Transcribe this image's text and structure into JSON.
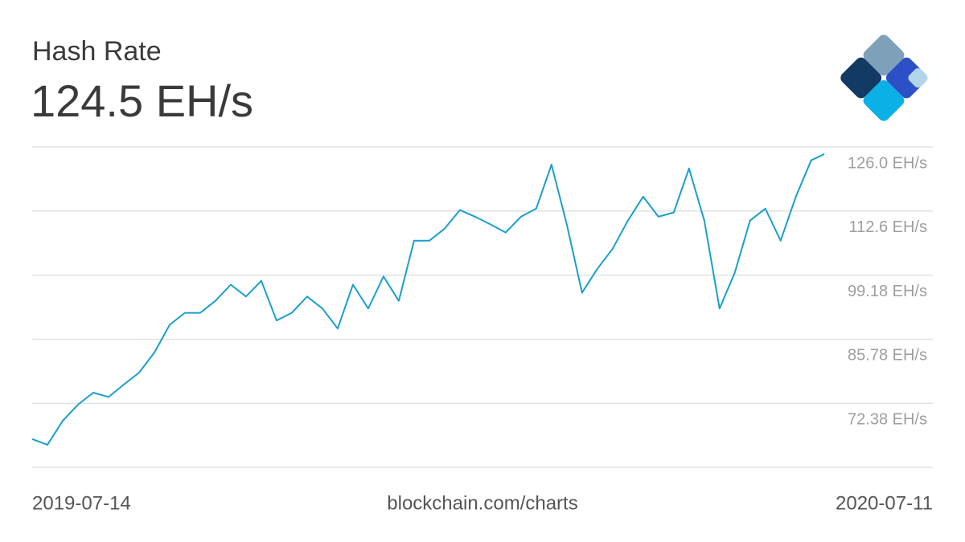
{
  "chart_data": {
    "type": "line",
    "title": "Hash Rate",
    "current_value": "124.5 EH/s",
    "source": "blockchain.com/charts",
    "color": "#1a9fcb",
    "grid": true,
    "x": [
      "2019-07-14",
      "2019-07-21",
      "2019-07-28",
      "2019-08-04",
      "2019-08-11",
      "2019-08-18",
      "2019-08-25",
      "2019-09-01",
      "2019-09-08",
      "2019-09-15",
      "2019-09-22",
      "2019-09-29",
      "2019-10-06",
      "2019-10-13",
      "2019-10-20",
      "2019-10-27",
      "2019-11-03",
      "2019-11-10",
      "2019-11-17",
      "2019-11-24",
      "2019-12-01",
      "2019-12-08",
      "2019-12-15",
      "2019-12-22",
      "2019-12-29",
      "2020-01-05",
      "2020-01-12",
      "2020-01-19",
      "2020-01-26",
      "2020-02-02",
      "2020-02-09",
      "2020-02-16",
      "2020-02-23",
      "2020-03-01",
      "2020-03-08",
      "2020-03-15",
      "2020-03-22",
      "2020-03-29",
      "2020-04-05",
      "2020-04-12",
      "2020-04-19",
      "2020-04-26",
      "2020-05-03",
      "2020-05-10",
      "2020-05-17",
      "2020-05-24",
      "2020-05-31",
      "2020-06-07",
      "2020-06-14",
      "2020-06-21",
      "2020-06-28",
      "2020-07-05",
      "2020-07-11"
    ],
    "values": [
      64.9,
      63.7,
      68.7,
      72.1,
      74.6,
      73.7,
      76.3,
      78.8,
      83.0,
      88.8,
      91.3,
      91.3,
      93.8,
      97.2,
      94.7,
      98.0,
      89.7,
      91.3,
      94.7,
      92.2,
      88.0,
      97.2,
      92.2,
      98.9,
      93.8,
      106.4,
      106.4,
      108.9,
      112.8,
      111.4,
      109.8,
      108.1,
      111.4,
      113.1,
      122.3,
      109.8,
      95.5,
      100.5,
      104.7,
      110.6,
      115.6,
      111.4,
      112.3,
      121.5,
      110.6,
      92.2,
      99.7,
      110.6,
      113.1,
      106.4,
      115.6,
      123.2,
      124.5
    ],
    "xlim": [
      "2019-07-14",
      "2020-07-11"
    ],
    "xticks": [
      "2019-07-14",
      "2020-07-11"
    ],
    "ylim": [
      58.98,
      126.0
    ],
    "yticks": [
      {
        "value": 126.0,
        "label": "126.0 EH/s"
      },
      {
        "value": 112.6,
        "label": "112.6 EH/s"
      },
      {
        "value": 99.18,
        "label": "99.18 EH/s"
      },
      {
        "value": 85.78,
        "label": "85.78 EH/s"
      },
      {
        "value": 72.38,
        "label": "72.38 EH/s"
      }
    ]
  }
}
